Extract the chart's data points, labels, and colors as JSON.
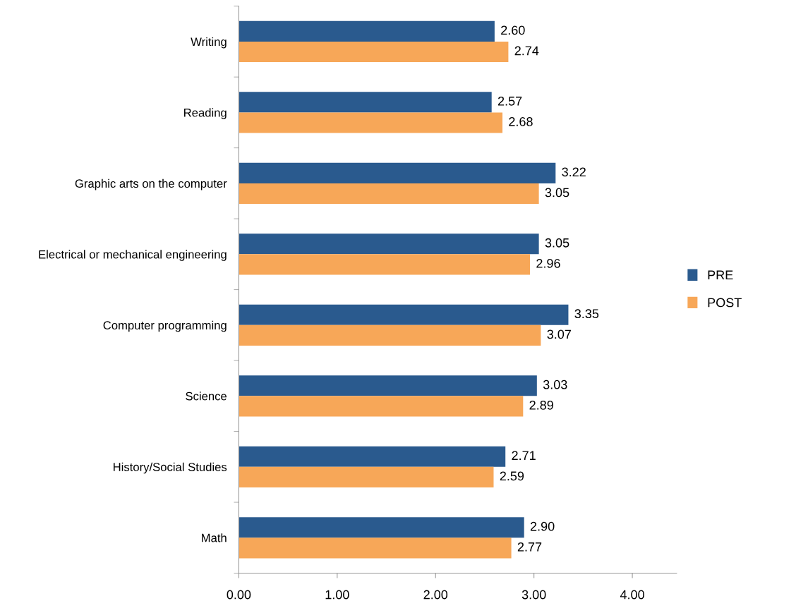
{
  "chart_data": {
    "type": "bar",
    "orientation": "horizontal",
    "categories": [
      "Writing",
      "Reading",
      "Graphic arts on the computer",
      "Electrical or mechanical engineering",
      "Computer programming",
      "Science",
      "History/Social Studies",
      "Math"
    ],
    "series": [
      {
        "name": "PRE",
        "color": "#2a5a8e",
        "values": [
          2.6,
          2.57,
          3.22,
          3.05,
          3.35,
          3.03,
          2.71,
          2.9
        ],
        "value_labels": [
          "2.60",
          "2.57",
          "3.22",
          "3.05",
          "3.35",
          "3.03",
          "2.71",
          "2.90"
        ]
      },
      {
        "name": "POST",
        "color": "#f7a758",
        "values": [
          2.74,
          2.68,
          3.05,
          2.96,
          3.07,
          2.89,
          2.59,
          2.77
        ],
        "value_labels": [
          "2.74",
          "2.68",
          "3.05",
          "2.96",
          "3.07",
          "2.89",
          "2.59",
          "2.77"
        ]
      }
    ],
    "xlim": [
      0,
      4.45
    ],
    "xticks": [
      {
        "value": 0,
        "label": "0.00"
      },
      {
        "value": 1,
        "label": "1.00"
      },
      {
        "value": 2,
        "label": "2.00"
      },
      {
        "value": 3,
        "label": "3.00"
      },
      {
        "value": 4,
        "label": "4.00"
      }
    ],
    "grid": false,
    "legend": "right"
  }
}
